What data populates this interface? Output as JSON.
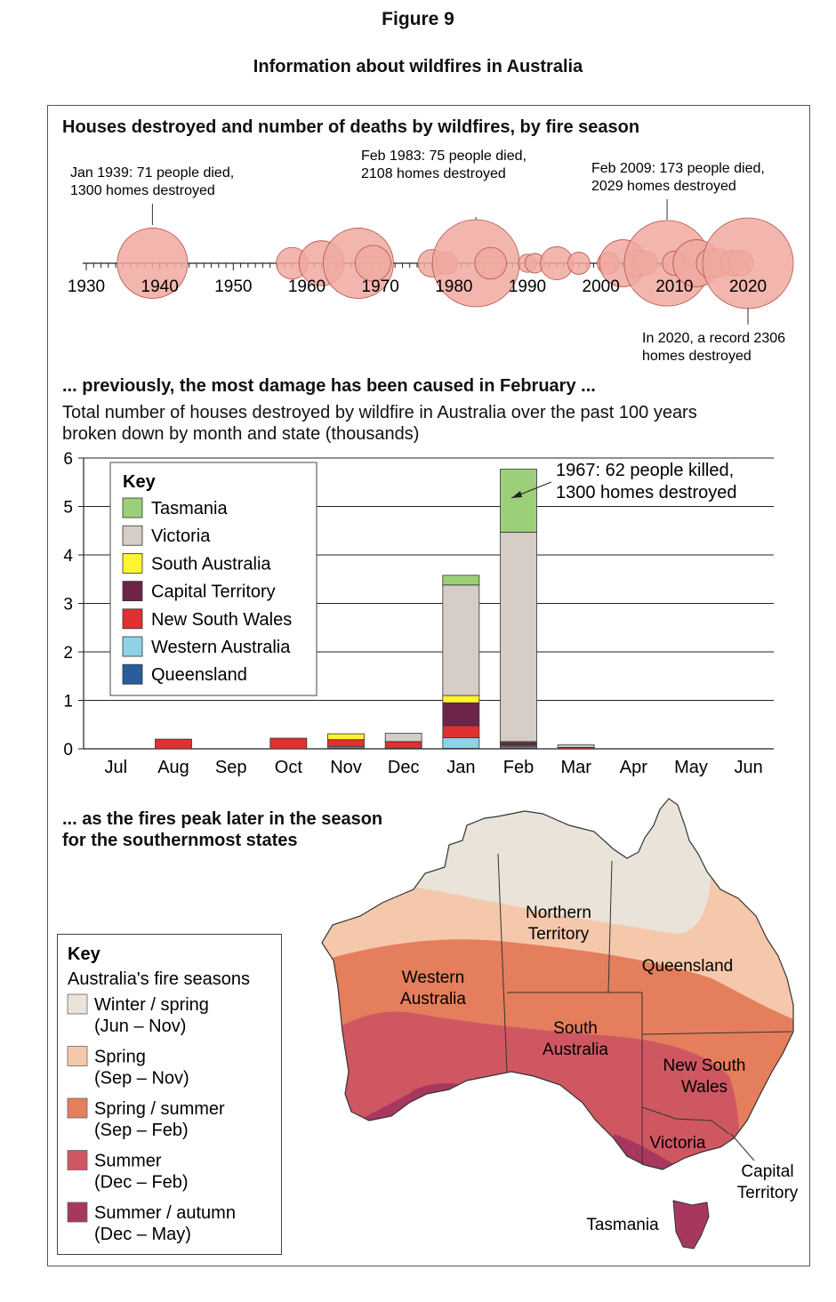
{
  "figure": {
    "label": "Figure 9",
    "title": "Information about wildfires in Australia"
  },
  "colors": {
    "bubble_fill": "#f0a9a0",
    "bubble_stroke": "#b5524a",
    "Tasmania": "#9ccf79",
    "Victoria": "#d6cdc6",
    "South Australia": "#fff333",
    "Capital Territory": "#6e2448",
    "New South Wales": "#e03030",
    "Western Australia": "#8fd1e6",
    "Queensland": "#2b5c9e",
    "season_winter_spring": "#e9e3da",
    "season_spring": "#f6c8ab",
    "season_spring_summer": "#e47e5c",
    "season_summer": "#cf5762",
    "season_summer_autumn": "#a83760"
  },
  "timeline": {
    "heading": "Houses destroyed and number of deaths by wildfires, by fire season",
    "axis_ticks": [
      "1930",
      "1940",
      "1950",
      "1960",
      "1970",
      "1980",
      "1990",
      "2000",
      "2010",
      "2020"
    ],
    "annotations": [
      {
        "year": 1939,
        "lines": [
          "Jan 1939: 71 people died,",
          "1300 homes destroyed"
        ]
      },
      {
        "year": 1983,
        "lines": [
          "Feb 1983: 75 people died,",
          "2108 homes destroyed"
        ]
      },
      {
        "year": 2009,
        "lines": [
          "Feb 2009: 173 people died,",
          "2029 homes destroyed"
        ]
      },
      {
        "year": 2020,
        "lines": [
          "In 2020, a record 2306",
          "homes destroyed"
        ]
      }
    ]
  },
  "bar_section": {
    "heading": "... previously, the most damage has been caused in February ...",
    "description_lines": [
      "Total number of houses destroyed by wildfire in Australia over the past 100 years",
      "broken down by month and state (thousands)"
    ],
    "key_title": "Key",
    "callout_lines": [
      "1967: 62 people killed,",
      "1300 homes destroyed"
    ]
  },
  "chart_data": [
    {
      "type": "scatter",
      "title": "Houses destroyed and number of deaths by wildfires, by fire season",
      "xlim": [
        1930,
        2020
      ],
      "x_ticks": [
        1930,
        1940,
        1950,
        1960,
        1970,
        1980,
        1990,
        2000,
        2010,
        2020
      ],
      "points": [
        {
          "x": 1939,
          "homes": 1300
        },
        {
          "x": 1958,
          "homes": 180
        },
        {
          "x": 1962,
          "homes": 450
        },
        {
          "x": 1967,
          "homes": 1300
        },
        {
          "x": 1969,
          "homes": 250
        },
        {
          "x": 1977,
          "homes": 120
        },
        {
          "x": 1979,
          "homes": 60
        },
        {
          "x": 1983,
          "homes": 2108
        },
        {
          "x": 1985,
          "homes": 180
        },
        {
          "x": 1990,
          "homes": 30
        },
        {
          "x": 1991,
          "homes": 40
        },
        {
          "x": 1994,
          "homes": 200
        },
        {
          "x": 1997,
          "homes": 60
        },
        {
          "x": 2001,
          "homes": 60
        },
        {
          "x": 2003,
          "homes": 500
        },
        {
          "x": 2005,
          "homes": 100
        },
        {
          "x": 2006,
          "homes": 80
        },
        {
          "x": 2009,
          "homes": 2029
        },
        {
          "x": 2010,
          "homes": 80
        },
        {
          "x": 2013,
          "homes": 500
        },
        {
          "x": 2015,
          "homes": 150
        },
        {
          "x": 2016,
          "homes": 120
        },
        {
          "x": 2018,
          "homes": 100
        },
        {
          "x": 2019,
          "homes": 90
        },
        {
          "x": 2020,
          "homes": 2306
        }
      ]
    },
    {
      "type": "bar",
      "stacked": true,
      "categories": [
        "Jul",
        "Aug",
        "Sep",
        "Oct",
        "Nov",
        "Dec",
        "Jan",
        "Feb",
        "Mar",
        "Apr",
        "May",
        "Jun"
      ],
      "ylim": [
        0,
        6
      ],
      "y_ticks": [
        0,
        1,
        2,
        3,
        4,
        5,
        6
      ],
      "grid": true,
      "legend_position": "top-left",
      "series": [
        {
          "name": "Queensland",
          "values": [
            0,
            0,
            0,
            0,
            0.02,
            0,
            0.01,
            0.02,
            0,
            0,
            0,
            0
          ]
        },
        {
          "name": "Western Australia",
          "values": [
            0,
            0,
            0,
            0,
            0.03,
            0.01,
            0.22,
            0.03,
            0,
            0,
            0,
            0
          ]
        },
        {
          "name": "New South Wales",
          "values": [
            0,
            0.2,
            0,
            0.22,
            0.14,
            0.14,
            0.25,
            0.03,
            0.03,
            0,
            0,
            0
          ]
        },
        {
          "name": "Capital Territory",
          "values": [
            0,
            0,
            0,
            0,
            0,
            0,
            0.47,
            0.05,
            0,
            0,
            0,
            0
          ]
        },
        {
          "name": "South Australia",
          "values": [
            0,
            0,
            0,
            0,
            0.12,
            0,
            0.15,
            0.02,
            0,
            0,
            0,
            0
          ]
        },
        {
          "name": "Victoria",
          "values": [
            0,
            0,
            0,
            0,
            0,
            0.17,
            2.28,
            4.32,
            0.05,
            0,
            0,
            0
          ]
        },
        {
          "name": "Tasmania",
          "values": [
            0,
            0,
            0,
            0,
            0,
            0,
            0.2,
            1.3,
            0,
            0,
            0,
            0
          ]
        }
      ],
      "legend_order": [
        "Tasmania",
        "Victoria",
        "South Australia",
        "Capital Territory",
        "New South Wales",
        "Western Australia",
        "Queensland"
      ],
      "annotations": [
        {
          "month": "Feb",
          "text": "1967: 62 people killed, 1300 homes destroyed"
        }
      ]
    }
  ],
  "map_section": {
    "heading_lines": [
      "... as the fires peak later in the season",
      "for the southernmost states"
    ],
    "key_title": "Key",
    "key_subtitle": "Australia's fire seasons",
    "seasons": [
      {
        "color_key": "season_winter_spring",
        "lines": [
          "Winter / spring",
          "(Jun – Nov)"
        ]
      },
      {
        "color_key": "season_spring",
        "lines": [
          "Spring",
          "(Sep – Nov)"
        ]
      },
      {
        "color_key": "season_spring_summer",
        "lines": [
          "Spring / summer",
          "(Sep – Feb)"
        ]
      },
      {
        "color_key": "season_summer",
        "lines": [
          "Summer",
          "(Dec – Feb)"
        ]
      },
      {
        "color_key": "season_summer_autumn",
        "lines": [
          "Summer / autumn",
          "(Dec – May)"
        ]
      }
    ],
    "state_labels": {
      "nt": [
        "Northern",
        "Territory"
      ],
      "wa": [
        "Western",
        "Australia"
      ],
      "qld": [
        "Queensland"
      ],
      "sa": [
        "South",
        "Australia"
      ],
      "nsw": [
        "New South",
        "Wales"
      ],
      "vic": [
        "Victoria"
      ],
      "act": [
        "Capital",
        "Territory"
      ],
      "tas": [
        "Tasmania"
      ]
    }
  }
}
